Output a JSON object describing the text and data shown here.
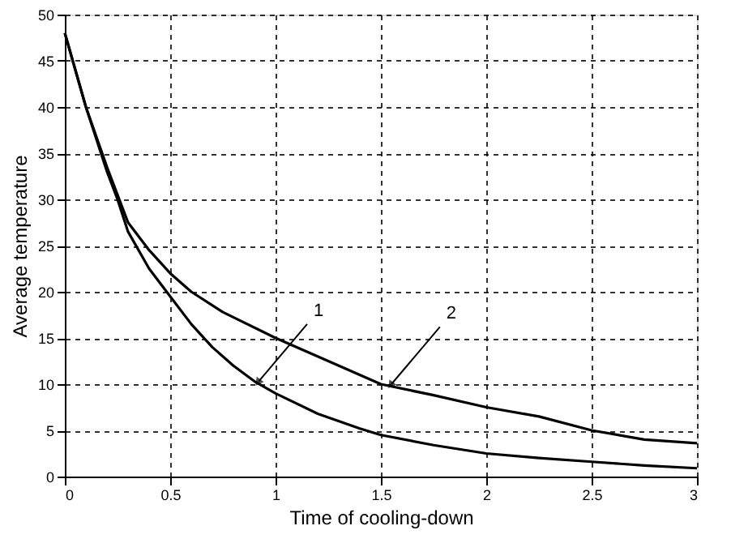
{
  "chart_data": {
    "type": "line",
    "xlabel": "Time of cooling-down",
    "ylabel": "Average temperature",
    "xlim": [
      0,
      3
    ],
    "xticks": [
      0,
      0.5,
      1,
      1.5,
      2,
      2.5,
      3
    ],
    "ylim": [
      0,
      50
    ],
    "yticks": [
      0,
      5,
      10,
      15,
      20,
      25,
      30,
      35,
      40,
      45,
      50
    ],
    "grid": true,
    "legend": false,
    "marker": "none",
    "line_style": "solid",
    "series": [
      {
        "color": "#000000",
        "x": [
          0,
          0.1,
          0.2,
          0.25,
          0.3,
          0.4,
          0.5,
          0.6,
          0.7,
          0.8,
          0.9,
          1.0,
          1.2,
          1.4,
          1.5,
          1.75,
          2.0,
          2.25,
          2.5,
          2.75,
          3.0
        ],
        "values": [
          48,
          40,
          33,
          30,
          26.5,
          22.5,
          19.5,
          16.5,
          14,
          12,
          10.3,
          9,
          6.8,
          5.2,
          4.5,
          3.4,
          2.5,
          2,
          1.6,
          1.2,
          0.9
        ]
      },
      {
        "color": "#000000",
        "x": [
          0,
          0.1,
          0.2,
          0.25,
          0.3,
          0.4,
          0.5,
          0.6,
          0.75,
          1.0,
          1.25,
          1.5,
          1.75,
          2.0,
          2.25,
          2.5,
          2.75,
          3.0
        ],
        "values": [
          48,
          40,
          33.5,
          30.5,
          27.5,
          24.5,
          22,
          20,
          17.8,
          15,
          12.5,
          10,
          8.8,
          7.5,
          6.5,
          5,
          4,
          3.6
        ]
      }
    ],
    "annotations": [
      {
        "text": "1",
        "x": 0.92,
        "y": 10.3
      },
      {
        "text": "2",
        "x": 1.55,
        "y": 10
      }
    ]
  }
}
